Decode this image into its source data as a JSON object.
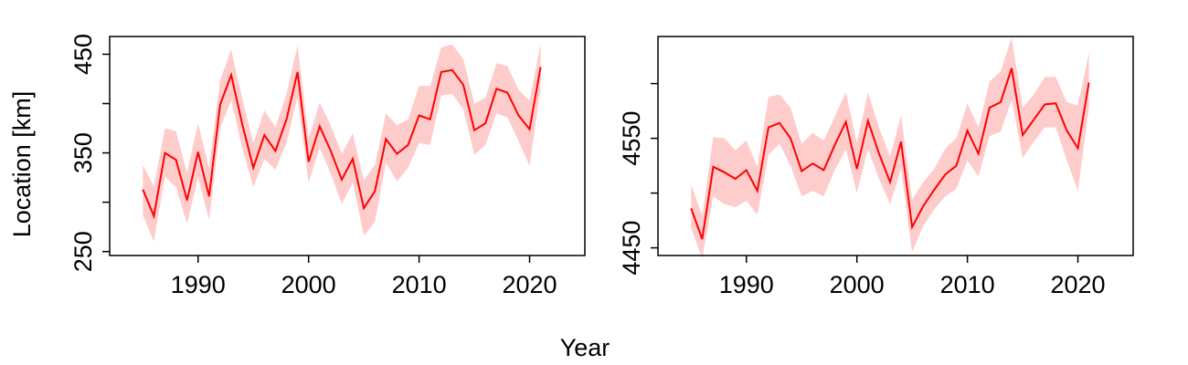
{
  "figure": {
    "ylabel": "Location [km]",
    "xlabel": "Year"
  },
  "style": {
    "line_color": "#ff0000",
    "band_color": "#ffcccc",
    "axis_color": "#000000"
  },
  "chart_data": [
    {
      "type": "line",
      "title": "",
      "xlabel": "Year",
      "ylabel": "Location [km]",
      "xlim": [
        1982,
        2025
      ],
      "ylim": [
        246,
        468
      ],
      "xticks": [
        1990,
        2000,
        2010,
        2020
      ],
      "yticks_labeled": [
        250,
        350,
        450
      ],
      "yticks_minor": [
        300,
        400
      ],
      "grid": false,
      "x": [
        1985,
        1986,
        1987,
        1988,
        1989,
        1990,
        1991,
        1992,
        1993,
        1994,
        1995,
        1996,
        1997,
        1998,
        1999,
        2000,
        2001,
        2002,
        2003,
        2004,
        2005,
        2006,
        2007,
        2008,
        2009,
        2010,
        2011,
        2012,
        2013,
        2014,
        2015,
        2016,
        2017,
        2018,
        2019,
        2020,
        2021
      ],
      "series": [
        {
          "values": [
            313,
            286,
            350,
            343,
            302,
            351,
            306,
            399,
            429,
            379,
            335,
            368,
            352,
            384,
            432,
            341,
            377,
            352,
            323,
            344,
            294,
            311,
            364,
            349,
            358,
            388,
            384,
            432,
            434,
            419,
            373,
            380,
            415,
            411,
            388,
            374,
            437
          ],
          "lower": [
            287,
            260,
            326,
            315,
            278,
            325,
            282,
            375,
            403,
            355,
            315,
            344,
            333,
            360,
            406,
            320,
            355,
            329,
            298,
            320,
            266,
            280,
            340,
            321,
            335,
            360,
            358,
            408,
            410,
            394,
            348,
            358,
            390,
            386,
            362,
            337,
            415
          ],
          "upper": [
            338,
            316,
            375,
            372,
            330,
            380,
            335,
            424,
            455,
            405,
            360,
            393,
            376,
            410,
            459,
            365,
            401,
            378,
            349,
            370,
            322,
            338,
            390,
            378,
            384,
            418,
            418,
            457,
            460,
            445,
            400,
            406,
            441,
            438,
            414,
            403,
            461
          ]
        }
      ]
    },
    {
      "type": "line",
      "title": "",
      "xlabel": "Year",
      "ylabel": "",
      "xlim": [
        1982,
        2025
      ],
      "ylim": [
        4443,
        4643
      ],
      "xticks": [
        1990,
        2000,
        2010,
        2020
      ],
      "yticks_labeled": [
        4450,
        4550
      ],
      "yticks_minor": [
        4500,
        4600
      ],
      "grid": false,
      "x": [
        1985,
        1986,
        1987,
        1988,
        1989,
        1990,
        1991,
        1992,
        1993,
        1994,
        1995,
        1996,
        1997,
        1998,
        1999,
        2000,
        2001,
        2002,
        2003,
        2004,
        2005,
        2006,
        2007,
        2008,
        2009,
        2010,
        2011,
        2012,
        2013,
        2014,
        2015,
        2016,
        2017,
        2018,
        2019,
        2020,
        2021
      ],
      "series": [
        {
          "values": [
            4486,
            4458,
            4524,
            4519,
            4513,
            4521,
            4502,
            4560,
            4564,
            4550,
            4520,
            4527,
            4521,
            4544,
            4565,
            4522,
            4566,
            4536,
            4510,
            4547,
            4469,
            4488,
            4503,
            4517,
            4525,
            4557,
            4536,
            4578,
            4583,
            4614,
            4553,
            4567,
            4581,
            4582,
            4557,
            4541,
            4601
          ],
          "lower": [
            4468,
            4440,
            4497,
            4490,
            4487,
            4493,
            4480,
            4535,
            4545,
            4525,
            4497,
            4502,
            4497,
            4521,
            4540,
            4500,
            4540,
            4513,
            4490,
            4522,
            4446,
            4470,
            4485,
            4497,
            4504,
            4530,
            4515,
            4552,
            4556,
            4585,
            4532,
            4547,
            4560,
            4560,
            4530,
            4502,
            4578
          ],
          "upper": [
            4508,
            4479,
            4551,
            4550,
            4539,
            4548,
            4524,
            4588,
            4590,
            4578,
            4545,
            4555,
            4548,
            4570,
            4592,
            4546,
            4592,
            4560,
            4533,
            4571,
            4494,
            4510,
            4522,
            4541,
            4550,
            4582,
            4560,
            4602,
            4611,
            4642,
            4578,
            4590,
            4606,
            4606,
            4583,
            4580,
            4628
          ]
        }
      ]
    }
  ]
}
